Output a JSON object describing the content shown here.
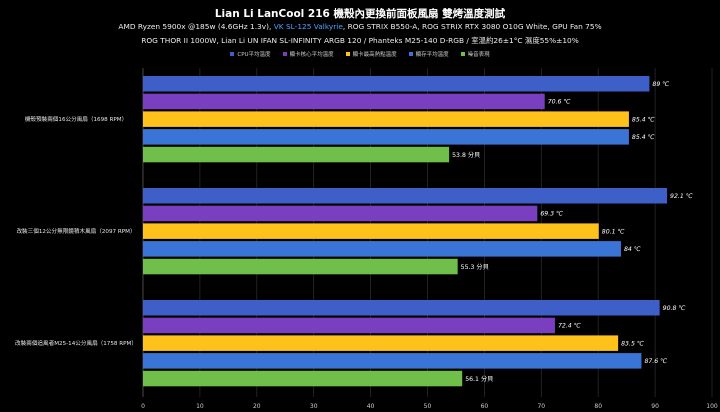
{
  "header": {
    "title": "Lian Li LanCool 216 機殼內更換前面板風扇 雙烤溫度測試",
    "sub1_pre": "AMD Ryzen 5900x @185w (4.6GHz 1.3v), ",
    "sub1_accent": "VK SL-125 Valkyrie",
    "sub1_post": ", ROG STRIX B550-A, ROG STRIX RTX 3080 O10G White, GPU Fan 75%",
    "sub2": "ROG THOR II 1000W, Lian Li UN IFAN SL-INFINITY ARGB 120 / Phanteks M25-140 D-RGB / 室溫約26±1°C 濕度55%±10%"
  },
  "colors": {
    "accent": "#4aa3ff",
    "series": [
      "#3f5fc8",
      "#7a3fc0",
      "#ffc21a",
      "#3a74d6",
      "#6fbf4a"
    ]
  },
  "chart_data": {
    "type": "bar",
    "orientation": "horizontal",
    "categories": [
      "機殼預裝兩個16公分風扇（1698 RPM）",
      "改裝三個12公分無限鏡積木風扇（2097 RPM）",
      "改裝兩個追風者M25-14公分風扇（1758 RPM）"
    ],
    "series": [
      {
        "name": "CPU平均溫度",
        "values": [
          89,
          92.1,
          90.8
        ],
        "labels": [
          "89 ℃",
          "92.1 ℃",
          "90.8 ℃"
        ]
      },
      {
        "name": "顯卡核心平均溫度",
        "values": [
          70.6,
          69.3,
          72.4
        ],
        "labels": [
          "70.6 ℃",
          "69.3 ℃",
          "72.4 ℃"
        ]
      },
      {
        "name": "顯卡最高熱點溫度",
        "values": [
          85.4,
          80.1,
          83.5
        ],
        "labels": [
          "85.4 ℃",
          "80.1 ℃",
          "83.5 ℃"
        ]
      },
      {
        "name": "顯存平均溫度",
        "values": [
          85.4,
          84,
          87.6
        ],
        "labels": [
          "85.4 ℃",
          "84 ℃",
          "87.6 ℃"
        ]
      },
      {
        "name": "噪音表現",
        "values": [
          53.8,
          55.3,
          56.1
        ],
        "labels": [
          "53.8 分貝",
          "55.3 分貝",
          "56.1 分貝"
        ]
      }
    ],
    "xlim": [
      0,
      100
    ],
    "xticks": [
      0,
      10,
      20,
      30,
      40,
      50,
      60,
      70,
      80,
      90,
      100
    ],
    "grid": true,
    "legend": "top-center"
  }
}
